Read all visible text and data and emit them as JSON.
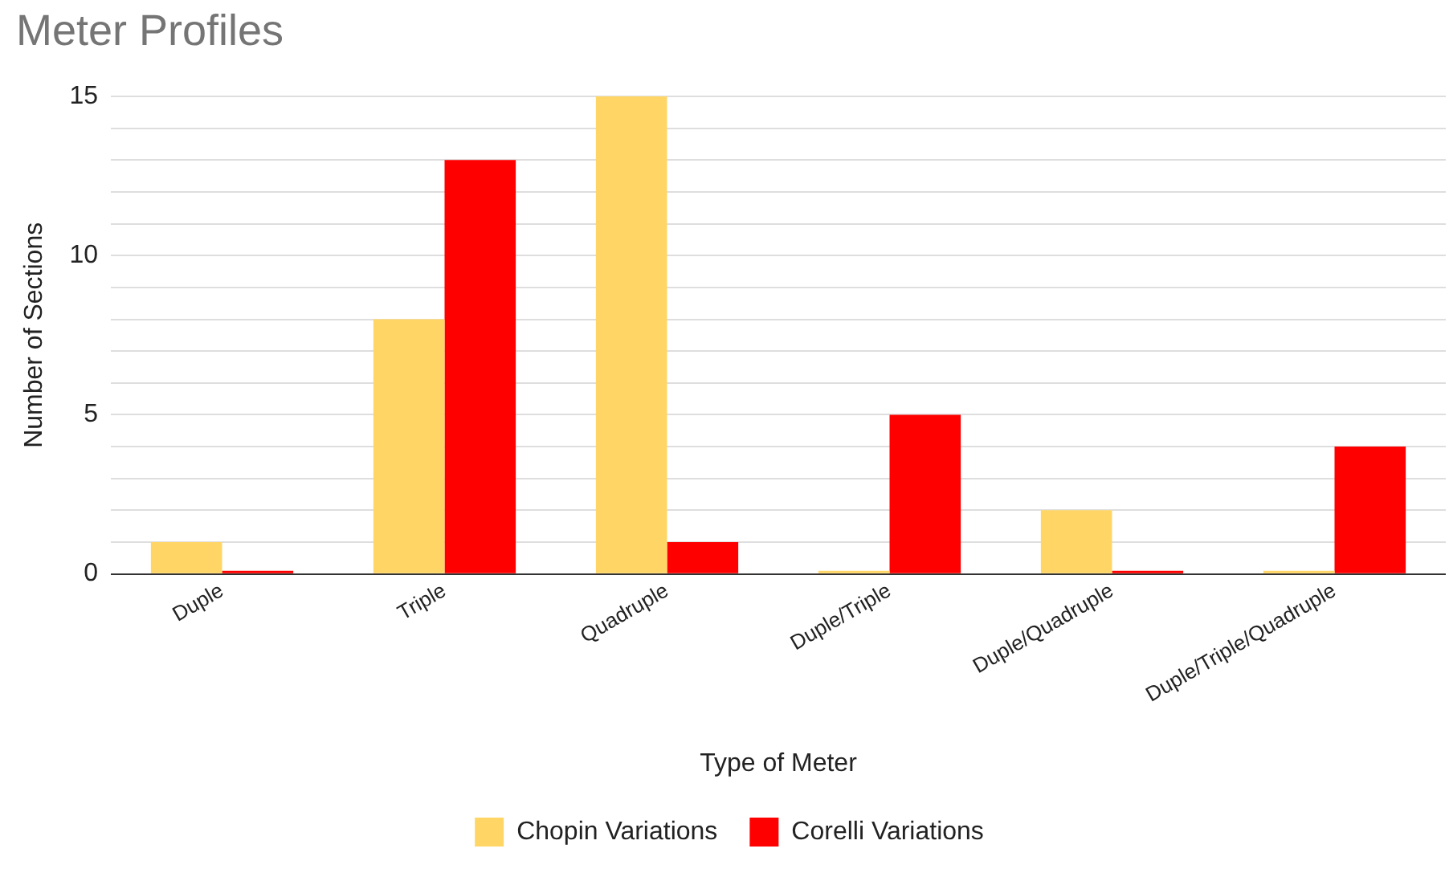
{
  "chart_data": {
    "type": "bar",
    "title": "Meter Profiles",
    "xlabel": "Type of Meter",
    "ylabel": "Number of Sections",
    "categories": [
      "Duple",
      "Triple",
      "Quadruple",
      "Duple/Triple",
      "Duple/Quadruple",
      "Duple/Triple/Quadruple"
    ],
    "series": [
      {
        "name": "Chopin Variations",
        "color": "#ffd666",
        "values": [
          1,
          8,
          15,
          0,
          2,
          0
        ]
      },
      {
        "name": "Corelli Variations",
        "color": "#ff0000",
        "values": [
          0,
          13,
          1,
          5,
          0,
          4
        ]
      }
    ],
    "ylim": [
      0,
      15
    ],
    "yticks": [
      0,
      {
        "value": 1,
        "label": null
      },
      {
        "value": 2,
        "label": null
      },
      {
        "value": 3,
        "label": null
      },
      {
        "value": 4,
        "label": null
      },
      5,
      {
        "value": 6,
        "label": null
      },
      {
        "value": 7,
        "label": null
      },
      {
        "value": 8,
        "label": null
      },
      {
        "value": 9,
        "label": null
      },
      10,
      {
        "value": 11,
        "label": null
      },
      {
        "value": 12,
        "label": null
      },
      {
        "value": 13,
        "label": null
      },
      {
        "value": 14,
        "label": null
      },
      15
    ],
    "grid": "y",
    "legend": "bottom"
  }
}
